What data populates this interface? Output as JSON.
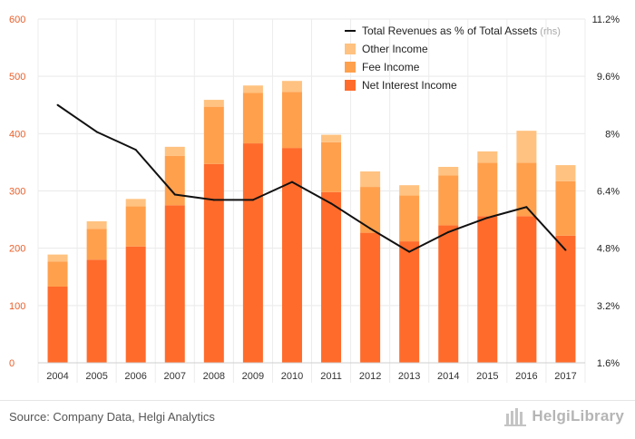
{
  "chart_data": {
    "type": "bar",
    "stacked": true,
    "categories": [
      "2004",
      "2005",
      "2006",
      "2007",
      "2008",
      "2009",
      "2010",
      "2011",
      "2012",
      "2013",
      "2014",
      "2015",
      "2016",
      "2017"
    ],
    "series": [
      {
        "name": "Net Interest Income",
        "color": "#ff6b2b",
        "axis": "left",
        "values": [
          133,
          180,
          203,
          275,
          347,
          383,
          375,
          298,
          227,
          212,
          240,
          256,
          256,
          222
        ]
      },
      {
        "name": "Fee Income",
        "color": "#ffa04d",
        "axis": "left",
        "values": [
          44,
          54,
          70,
          86,
          100,
          88,
          98,
          87,
          80,
          80,
          87,
          93,
          93,
          95
        ]
      },
      {
        "name": "Other Income",
        "color": "#ffc280",
        "axis": "left",
        "values": [
          12,
          13,
          13,
          16,
          12,
          13,
          19,
          13,
          27,
          18,
          15,
          20,
          56,
          28
        ]
      },
      {
        "name": "Total Revenues as % of Total Assets",
        "unit_note": "(rhs)",
        "type": "line",
        "color": "#111111",
        "axis": "right",
        "values": [
          8.8,
          8.05,
          7.55,
          6.3,
          6.15,
          6.15,
          6.65,
          6.05,
          5.35,
          4.7,
          5.25,
          5.65,
          5.95,
          4.75
        ]
      }
    ],
    "y_left": {
      "min": 0,
      "max": 600,
      "ticks": [
        "0",
        "100",
        "200",
        "300",
        "400",
        "500",
        "600"
      ],
      "tick_color": "#e8602c"
    },
    "y_right": {
      "min": 1.6,
      "max": 11.2,
      "ticks": [
        "1.6%",
        "3.2%",
        "4.8%",
        "6.4%",
        "8%",
        "9.6%",
        "11.2%"
      ]
    },
    "grid": true,
    "legend_position": "top-right"
  },
  "footer": {
    "source": "Source: Company Data, Helgi Analytics",
    "brand": "HelgiLibrary"
  }
}
